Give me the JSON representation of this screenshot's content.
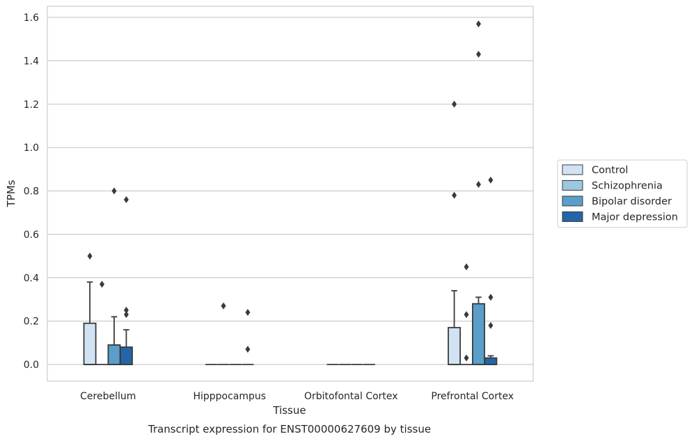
{
  "chart_data": {
    "type": "box",
    "title": "Transcript expression for ENST00000627609 by tissue",
    "xlabel": "Tissue",
    "ylabel": "TPMs",
    "ylim": [
      -0.075,
      1.65
    ],
    "yticks": [
      "0.0",
      "0.2",
      "0.4",
      "0.6",
      "0.8",
      "1.0",
      "1.2",
      "1.4",
      "1.6"
    ],
    "grid": true,
    "legend_position": "right",
    "categories": [
      "Cerebellum",
      "Hipppocampus",
      "Orbitofontal Cortex",
      "Prefrontal Cortex"
    ],
    "series": [
      {
        "name": "Control",
        "color": "#d1e2f2",
        "boxes": [
          {
            "q1": 0.0,
            "median": 0.0,
            "q3": 0.19,
            "whisker_low": 0.0,
            "whisker_high": 0.38,
            "outliers": [
              0.5
            ]
          },
          {
            "q1": 0.0,
            "median": 0.0,
            "q3": 0.0,
            "whisker_low": 0.0,
            "whisker_high": 0.0,
            "outliers": []
          },
          {
            "q1": 0.0,
            "median": 0.0,
            "q3": 0.0,
            "whisker_low": 0.0,
            "whisker_high": 0.0,
            "outliers": []
          },
          {
            "q1": 0.0,
            "median": 0.0,
            "q3": 0.17,
            "whisker_low": 0.0,
            "whisker_high": 0.34,
            "outliers": [
              0.78,
              1.2
            ]
          }
        ]
      },
      {
        "name": "Schizophrenia",
        "color": "#9ac8e0",
        "boxes": [
          {
            "q1": 0.0,
            "median": 0.0,
            "q3": 0.0,
            "whisker_low": 0.0,
            "whisker_high": 0.0,
            "outliers": [
              0.37
            ]
          },
          {
            "q1": 0.0,
            "median": 0.0,
            "q3": 0.0,
            "whisker_low": 0.0,
            "whisker_high": 0.0,
            "outliers": [
              0.27
            ]
          },
          {
            "q1": 0.0,
            "median": 0.0,
            "q3": 0.0,
            "whisker_low": 0.0,
            "whisker_high": 0.0,
            "outliers": []
          },
          {
            "q1": 0.0,
            "median": 0.0,
            "q3": 0.0,
            "whisker_low": 0.0,
            "whisker_high": 0.0,
            "outliers": [
              0.03,
              0.23,
              0.45
            ]
          }
        ]
      },
      {
        "name": "Bipolar disorder",
        "color": "#5a9ec9",
        "boxes": [
          {
            "q1": 0.0,
            "median": 0.0,
            "q3": 0.09,
            "whisker_low": 0.0,
            "whisker_high": 0.22,
            "outliers": [
              0.8
            ]
          },
          {
            "q1": 0.0,
            "median": 0.0,
            "q3": 0.0,
            "whisker_low": 0.0,
            "whisker_high": 0.0,
            "outliers": []
          },
          {
            "q1": 0.0,
            "median": 0.0,
            "q3": 0.0,
            "whisker_low": 0.0,
            "whisker_high": 0.0,
            "outliers": []
          },
          {
            "q1": 0.0,
            "median": 0.0,
            "q3": 0.28,
            "whisker_low": 0.0,
            "whisker_high": 0.31,
            "outliers": [
              0.83,
              1.43,
              1.57
            ]
          }
        ]
      },
      {
        "name": "Major depression",
        "color": "#2465a9",
        "boxes": [
          {
            "q1": 0.0,
            "median": 0.0,
            "q3": 0.08,
            "whisker_low": 0.0,
            "whisker_high": 0.16,
            "outliers": [
              0.23,
              0.25,
              0.76
            ]
          },
          {
            "q1": 0.0,
            "median": 0.0,
            "q3": 0.0,
            "whisker_low": 0.0,
            "whisker_high": 0.0,
            "outliers": [
              0.07,
              0.24
            ]
          },
          {
            "q1": 0.0,
            "median": 0.0,
            "q3": 0.0,
            "whisker_low": 0.0,
            "whisker_high": 0.0,
            "outliers": []
          },
          {
            "q1": 0.0,
            "median": 0.0,
            "q3": 0.03,
            "whisker_low": 0.0,
            "whisker_high": 0.04,
            "outliers": [
              0.18,
              0.31,
              0.85
            ]
          }
        ]
      }
    ]
  }
}
